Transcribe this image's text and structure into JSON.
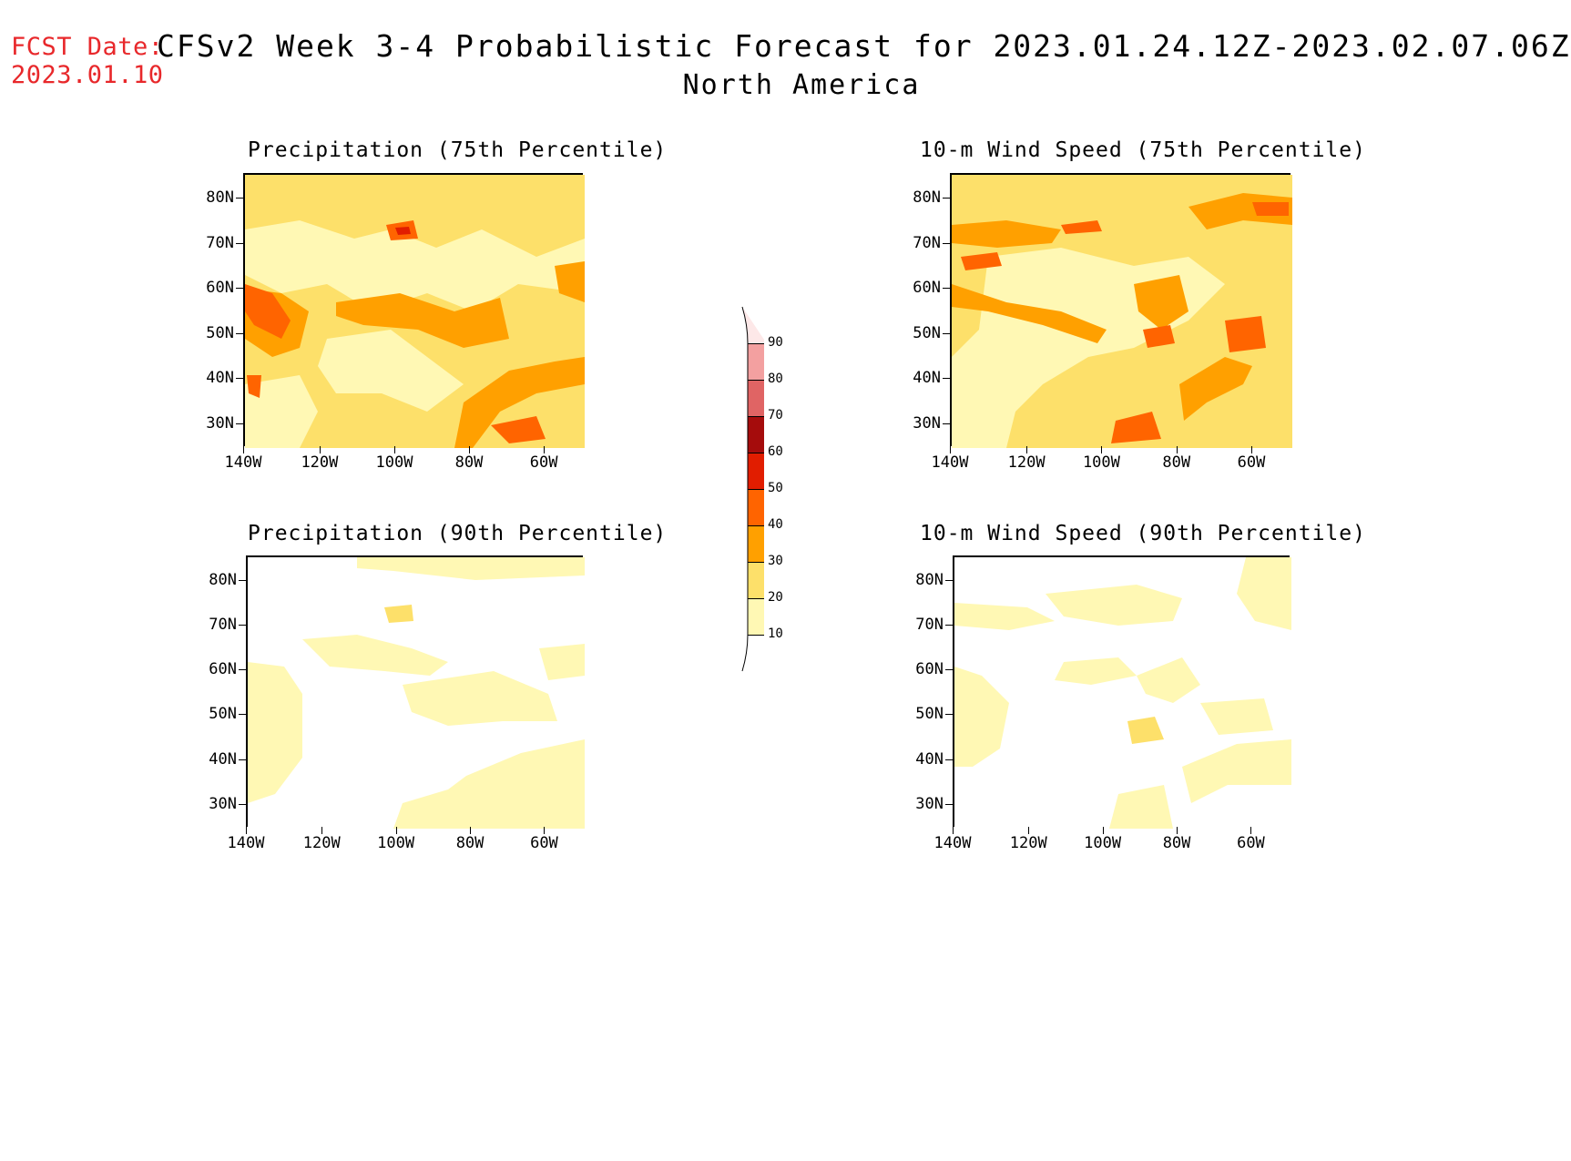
{
  "header": {
    "fcst_label": "FCST Date:",
    "fcst_date": "2023.01.10",
    "title": "CFSv2 Week 3-4 Probabilistic Forecast for 2023.01.24.12Z-2023.02.07.06Z",
    "region": "North America"
  },
  "axes": {
    "lat_labels": [
      "80N",
      "70N",
      "60N",
      "50N",
      "40N",
      "30N"
    ],
    "lon_labels": [
      "140W",
      "120W",
      "100W",
      "80W",
      "60W"
    ]
  },
  "panels": [
    {
      "id": "precip-75",
      "title": "Precipitation (75th Percentile)"
    },
    {
      "id": "wind-75",
      "title": "10-m Wind Speed (75th Percentile)"
    },
    {
      "id": "precip-90",
      "title": "Precipitation (90th Percentile)"
    },
    {
      "id": "wind-90",
      "title": "10-m Wind Speed (90th Percentile)"
    }
  ],
  "colorbar": {
    "labels": [
      "90",
      "80",
      "70",
      "60",
      "50",
      "40",
      "30",
      "20",
      "10"
    ],
    "colors": [
      "#fde8e8",
      "#f3a0a0",
      "#e06464",
      "#a50c0c",
      "#e11d00",
      "#ff6400",
      "#ffa000",
      "#fde06a",
      "#fff8b4"
    ]
  }
}
